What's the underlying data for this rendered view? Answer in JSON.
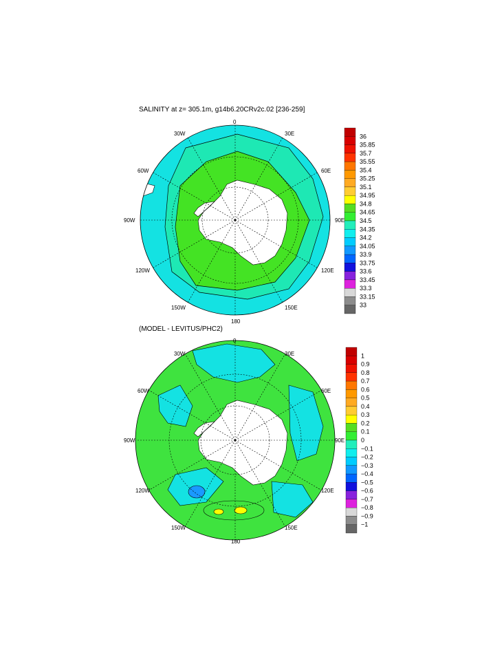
{
  "panel1": {
    "title": "SALINITY at z= 305.1m, g14b6.20CRv2c.02 [236-259]",
    "colorbar": [
      "36",
      "35.85",
      "35.7",
      "35.55",
      "35.4",
      "35.25",
      "35.1",
      "34.95",
      "34.8",
      "34.65",
      "34.5",
      "34.35",
      "34.2",
      "34.05",
      "33.9",
      "33.75",
      "33.6",
      "33.45",
      "33.3",
      "33.15",
      "33"
    ]
  },
  "panel2": {
    "title": "(MODEL - LEVITUS/PHC2)",
    "colorbar": [
      "1",
      "0.9",
      "0.8",
      "0.7",
      "0.6",
      "0.5",
      "0.4",
      "0.3",
      "0.2",
      "0.1",
      "0",
      "−0.1",
      "−0.2",
      "−0.3",
      "−0.4",
      "−0.5",
      "−0.6",
      "−0.7",
      "−0.8",
      "−0.9",
      "−1"
    ]
  },
  "map_labels": {
    "top": "0",
    "bottom": "180",
    "left": "90W",
    "right": "90E",
    "w30": "30W",
    "e30": "30E",
    "w60": "60W",
    "e60": "60E",
    "w120": "120W",
    "e120": "120E",
    "w150": "150W",
    "e150": "150E"
  },
  "colors": {
    "land": "#ffffff",
    "seg": [
      "#c00000",
      "#d80000",
      "#ee1100",
      "#ff3300",
      "#ff7700",
      "#ff9900",
      "#ffaa22",
      "#ffcc33",
      "#ffff00",
      "#55dd22",
      "#33ee33",
      "#22eebb",
      "#11eeee",
      "#00ccff",
      "#1199ff",
      "#0066ff",
      "#1111dd",
      "#8822dd",
      "#dd22dd",
      "#d8d8d8",
      "#8c8c8c",
      "#666666"
    ],
    "panel1_outer": "#14e2e2",
    "panel1_mid": "#1ee8b4",
    "panel1_inner": "#44e324",
    "panel2_base": "#3fe33f",
    "panel2_cyan": "#14e2e2",
    "panel2_blue": "#1a99ff",
    "panel2_yellow": "#ffff00"
  }
}
